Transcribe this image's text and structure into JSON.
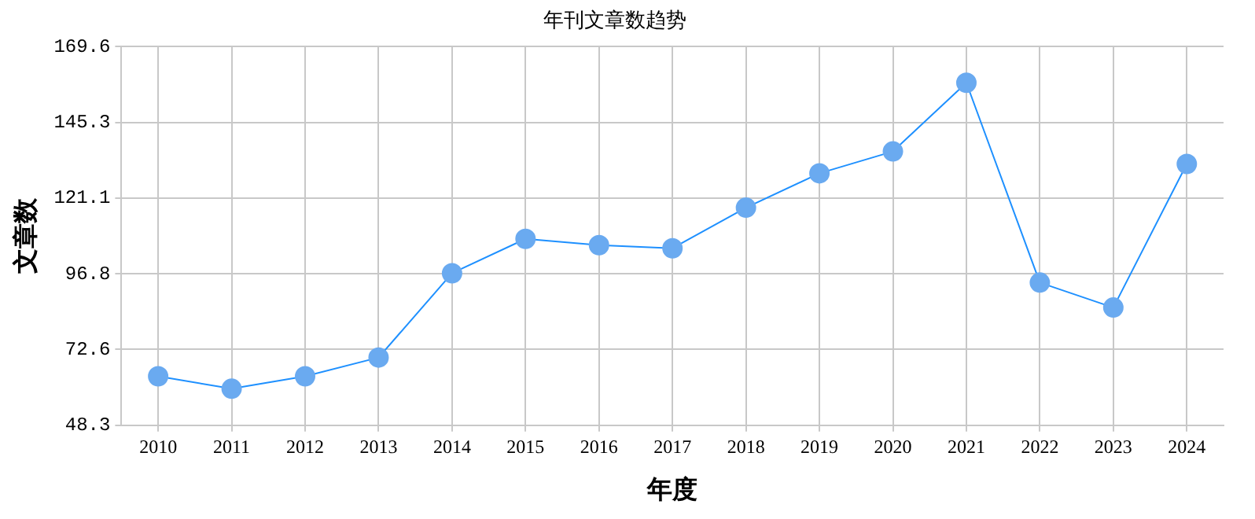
{
  "chart_data": {
    "type": "line",
    "title": "年刊文章数趋势",
    "xlabel": "年度",
    "ylabel": "文章数",
    "categories": [
      "2010",
      "2011",
      "2012",
      "2013",
      "2014",
      "2015",
      "2016",
      "2017",
      "2018",
      "2019",
      "2020",
      "2021",
      "2022",
      "2023",
      "2024"
    ],
    "series": [
      {
        "color": "#1e90ff",
        "values": [
          64,
          60,
          64,
          70,
          97,
          108,
          106,
          105,
          118,
          129,
          136,
          158,
          94,
          86,
          132
        ]
      }
    ],
    "ylim": [
      48.3,
      169.6
    ],
    "yticks": [
      48.3,
      72.6,
      96.8,
      121.1,
      145.3,
      169.6
    ],
    "grid": true,
    "marker": "circle",
    "line_style": "solid"
  }
}
